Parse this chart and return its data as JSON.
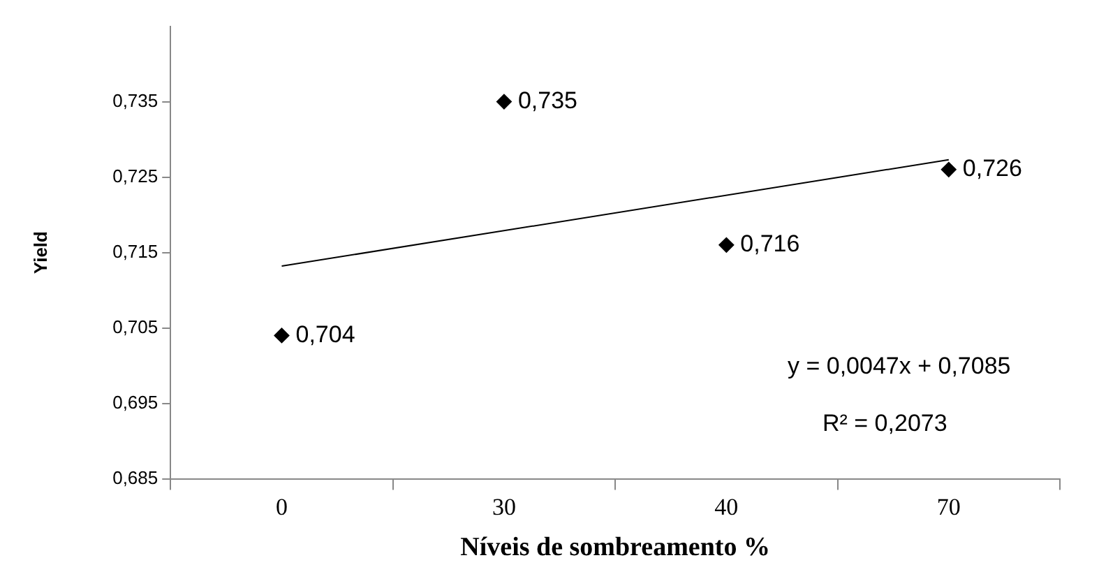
{
  "chart_data": {
    "type": "scatter",
    "xlabel": "Níveis de sombreamento %",
    "ylabel": "Yield",
    "categories": [
      "0",
      "30",
      "40",
      "70"
    ],
    "series": [
      {
        "color": "#000000",
        "values": [
          0.704,
          0.735,
          0.716,
          0.726
        ],
        "value_labels": [
          "0,704",
          "0,735",
          "0,716",
          "0,726"
        ],
        "marker": "diamond"
      },
      {
        "type": "line",
        "color": "#000000",
        "x": [
          "0",
          "70"
        ],
        "values": [
          0.7132,
          0.7273
        ],
        "marker": "none",
        "line_style": "solid"
      }
    ],
    "ylim": [
      0.685,
      0.745
    ],
    "yticks": [
      {
        "value": 0.685,
        "label": "0,685"
      },
      {
        "value": 0.695,
        "label": "0,695"
      },
      {
        "value": 0.705,
        "label": "0,705"
      },
      {
        "value": 0.715,
        "label": "0,715"
      },
      {
        "value": 0.725,
        "label": "0,725"
      },
      {
        "value": 0.735,
        "label": "0,735"
      }
    ],
    "annotations": [
      "y = 0,0047x + 0,7085",
      "R² = 0,2073"
    ],
    "grid": false,
    "legend": false
  }
}
